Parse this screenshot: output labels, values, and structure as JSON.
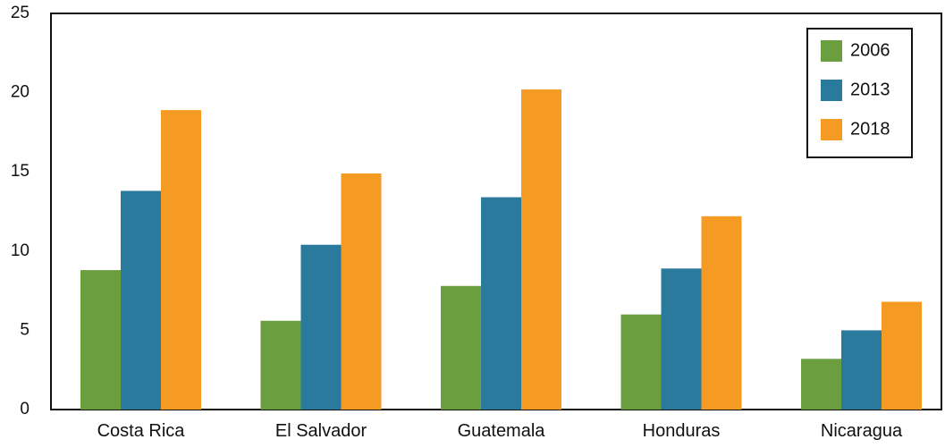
{
  "chart_data": {
    "type": "bar",
    "categories": [
      "Costa Rica",
      "El Salvador",
      "Guatemala",
      "Honduras",
      "Nicaragua"
    ],
    "series": [
      {
        "name": "2006",
        "values": [
          8.8,
          5.6,
          7.8,
          6.0,
          3.2
        ],
        "color": "#6a9e3f"
      },
      {
        "name": "2013",
        "values": [
          13.8,
          10.4,
          13.4,
          8.9,
          5.0
        ],
        "color": "#2a7a9e"
      },
      {
        "name": "2018",
        "values": [
          18.9,
          14.9,
          20.2,
          12.2,
          6.8
        ],
        "color": "#f59a23"
      }
    ],
    "yticks": [
      "0",
      "5",
      "10",
      "15",
      "20",
      "25"
    ],
    "ylim": [
      0,
      25
    ],
    "title": "",
    "xlabel": "",
    "ylabel": "",
    "grid": false,
    "legend_position": "top-right"
  }
}
